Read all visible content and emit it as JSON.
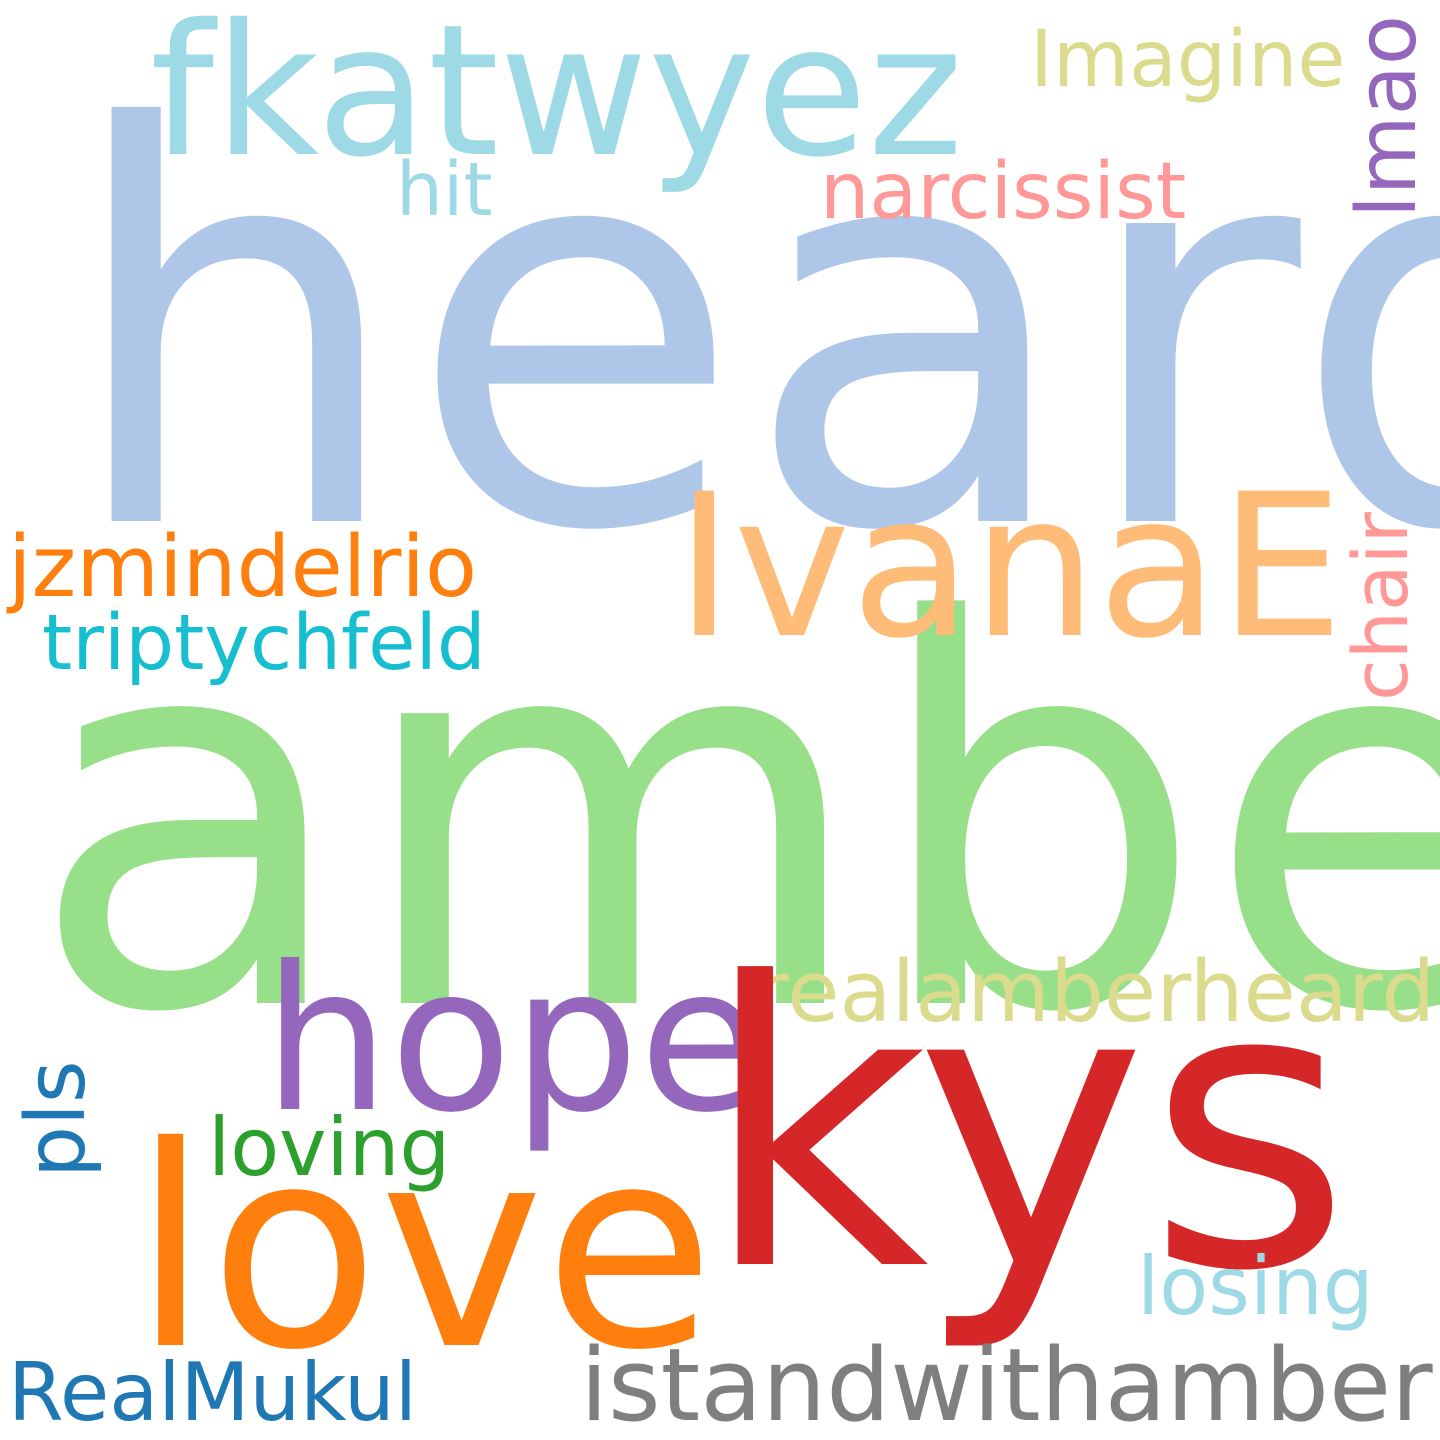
{
  "words": {
    "heard": {
      "text": "heard",
      "color": "#aec7e8"
    },
    "amber": {
      "text": "amber",
      "color": "#98df8a"
    },
    "kys": {
      "text": "kys",
      "color": "#d62728"
    },
    "love": {
      "text": "love",
      "color": "#ff7f0e"
    },
    "hope": {
      "text": "hope",
      "color": "#9467bd"
    },
    "IvanaE": {
      "text": "IvanaE",
      "color": "#ffbb78"
    },
    "fkatwyez": {
      "text": "fkatwyez",
      "color": "#9edae5"
    },
    "istandwithamber": {
      "text": "istandwithamber",
      "color": "#7f7f7f"
    },
    "realamberheard": {
      "text": "realamberheard",
      "color": "#dbdb8d"
    },
    "jzmindelrio": {
      "text": "jzmindelrio",
      "color": "#ff7f0e"
    },
    "triptychfeld": {
      "text": "triptychfeld",
      "color": "#17becf"
    },
    "RealMukul": {
      "text": "RealMukul",
      "color": "#1f77b4"
    },
    "losing": {
      "text": "losing",
      "color": "#9edae5"
    },
    "loving": {
      "text": "loving",
      "color": "#2ca02c"
    },
    "narcissist": {
      "text": "narcissist",
      "color": "#ff9896"
    },
    "Imagine": {
      "text": "Imagine",
      "color": "#dbdb8d"
    },
    "hit": {
      "text": "hit",
      "color": "#9edae5"
    },
    "lmao": {
      "text": "lmao",
      "color": "#9467bd",
      "orientation": "vertical"
    },
    "chair": {
      "text": "chair",
      "color": "#ff9896",
      "orientation": "vertical"
    },
    "pls": {
      "text": "pls",
      "color": "#1f77b4",
      "orientation": "vertical"
    }
  },
  "background": "#ffffff"
}
